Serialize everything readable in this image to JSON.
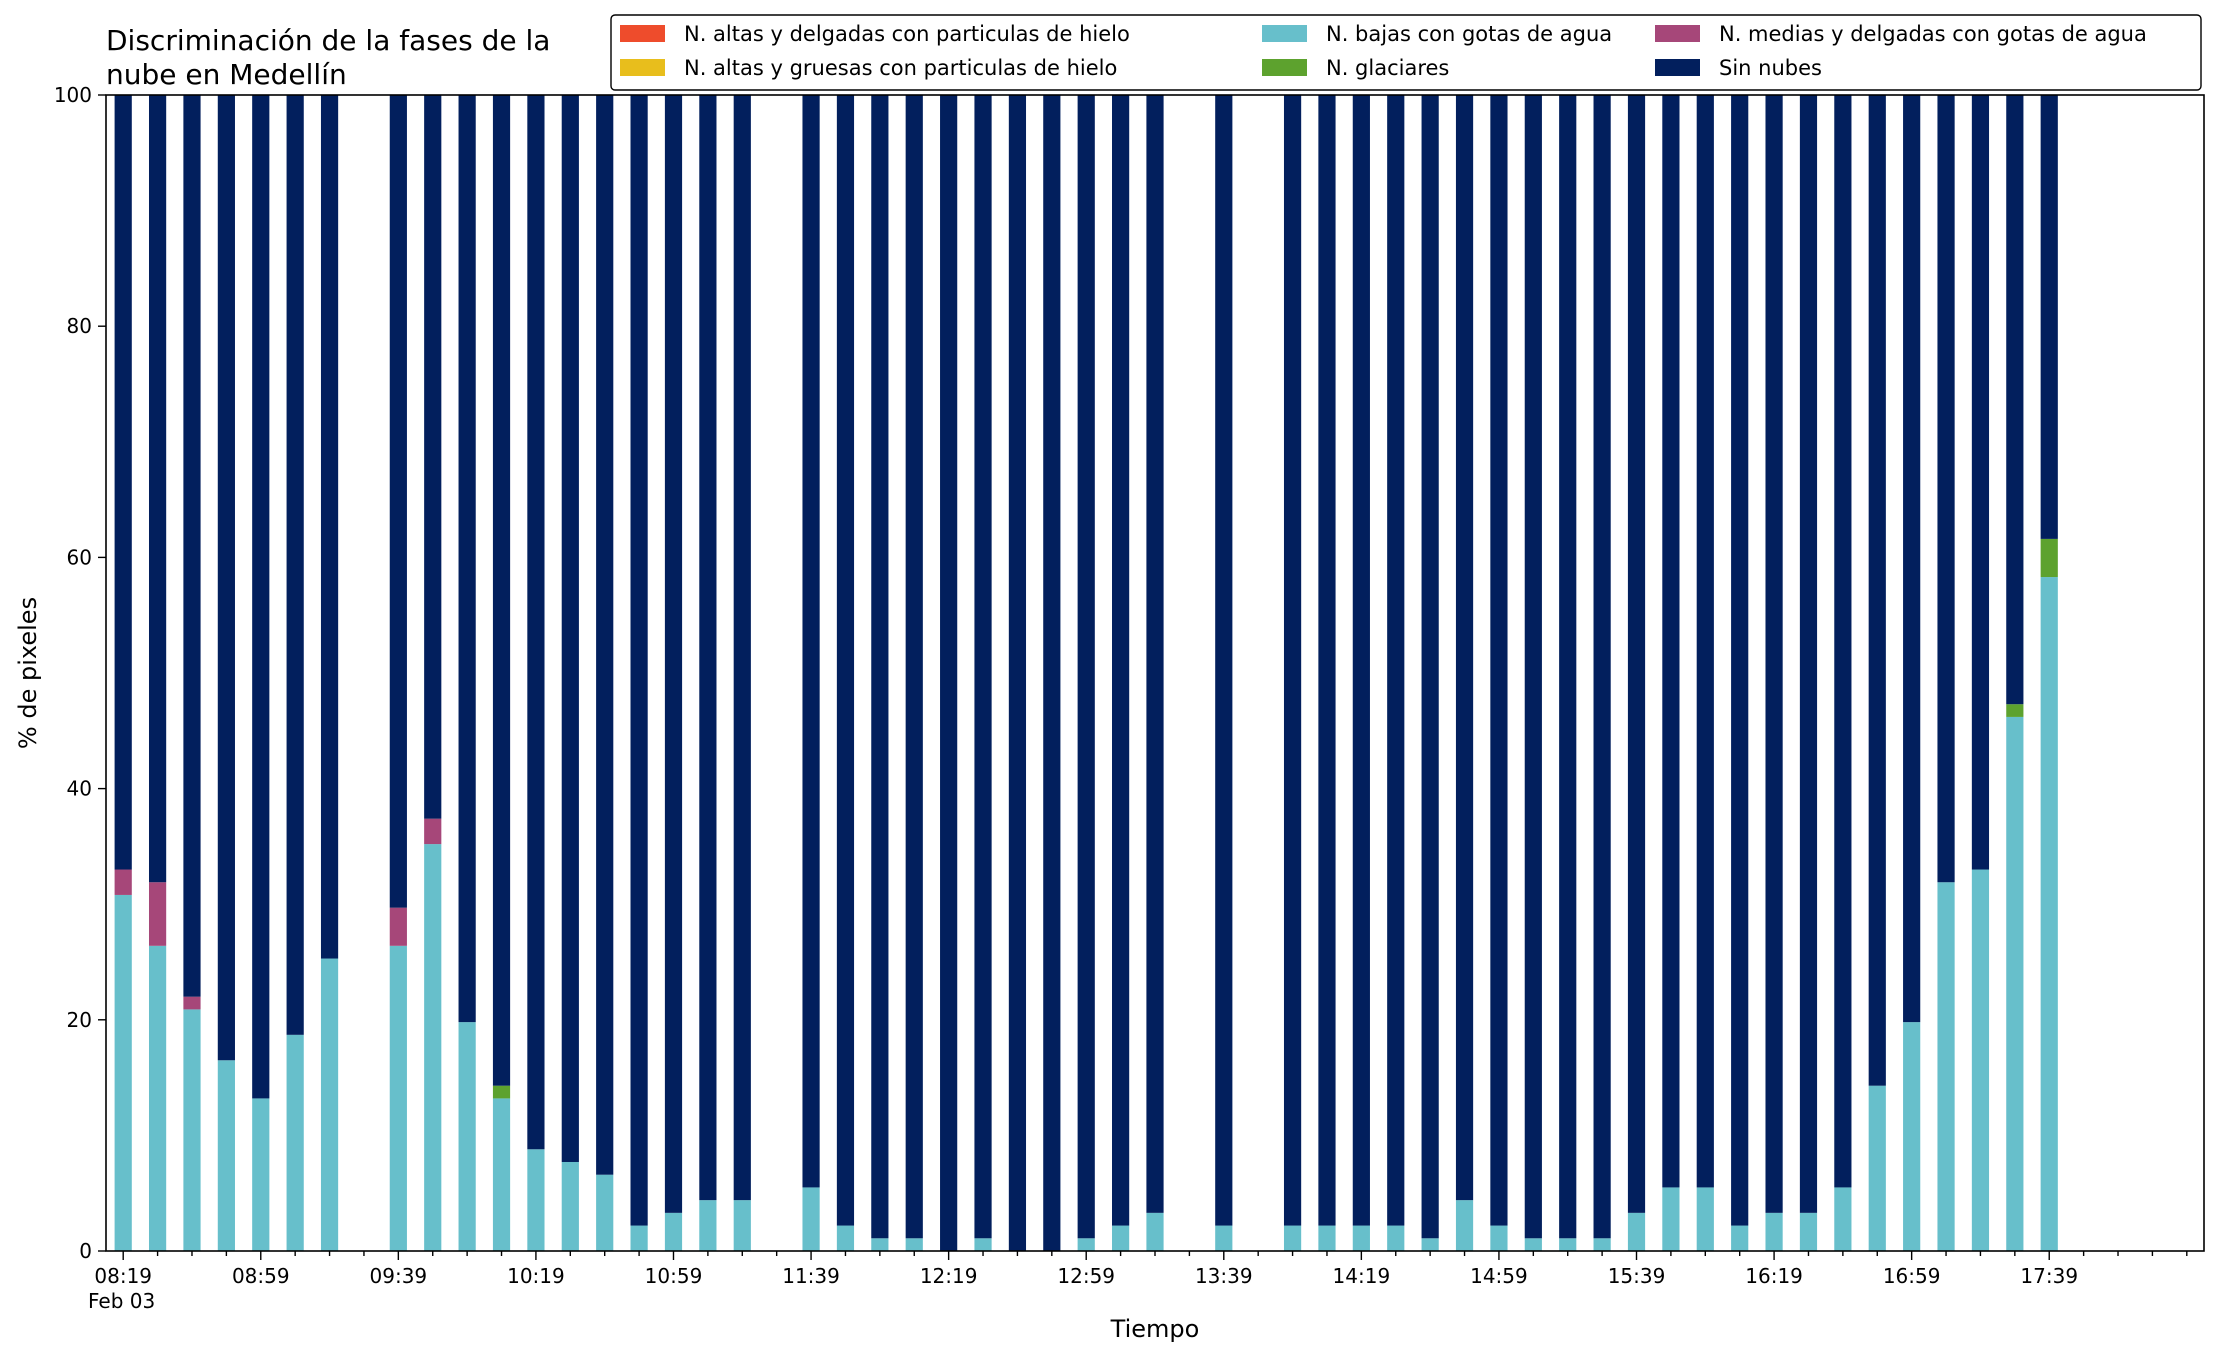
{
  "chart_data": {
    "type": "bar",
    "stacked": true,
    "title": "Discriminación de la fases de la nube en Medellín",
    "title_lines": [
      "Discriminación de la fases de la",
      "nube en Medellín"
    ],
    "xlabel": "Tiempo",
    "ylabel": "% de pixeles",
    "ylim": [
      0,
      100
    ],
    "yticks": [
      0,
      20,
      40,
      60,
      80,
      100
    ],
    "x_start": "08:19",
    "x_end": "18:19",
    "x_step_minutes": 10,
    "x_tick_labels": [
      "08:19",
      "08:59",
      "09:39",
      "10:19",
      "10:59",
      "11:39",
      "12:19",
      "12:59",
      "13:39",
      "14:19",
      "14:59",
      "15:39",
      "16:19",
      "16:59",
      "17:39"
    ],
    "x_date_label": "Feb 03",
    "legend_position": "top-right",
    "legend_columns": 3,
    "times": [
      "08:19",
      "08:29",
      "08:39",
      "08:49",
      "08:59",
      "09:09",
      "09:19",
      "09:29",
      "09:39",
      "09:49",
      "09:59",
      "10:09",
      "10:19",
      "10:29",
      "10:39",
      "10:49",
      "10:59",
      "11:09",
      "11:19",
      "11:29",
      "11:39",
      "11:49",
      "11:59",
      "12:09",
      "12:19",
      "12:29",
      "12:39",
      "12:49",
      "12:59",
      "13:09",
      "13:19",
      "13:29",
      "13:39",
      "13:49",
      "13:59",
      "14:09",
      "14:19",
      "14:29",
      "14:39",
      "14:49",
      "14:59",
      "15:09",
      "15:19",
      "15:29",
      "15:39",
      "15:49",
      "15:59",
      "16:09",
      "16:19",
      "16:29",
      "16:39",
      "16:49",
      "16:59",
      "17:09",
      "17:19",
      "17:29",
      "17:39"
    ],
    "series": [
      {
        "name": "N. altas y delgadas con particulas de hielo",
        "color": "#ee4c2c",
        "values": [
          0,
          0,
          0,
          0,
          0,
          0,
          0,
          0,
          0,
          0,
          0,
          0,
          0,
          0,
          0,
          0,
          0,
          0,
          0,
          0,
          0,
          0,
          0,
          0,
          0,
          0,
          0,
          0,
          0,
          0,
          0,
          0,
          0,
          0,
          0,
          0,
          0,
          0,
          0,
          0,
          0,
          0,
          0,
          0,
          0,
          0,
          0,
          0,
          0,
          0,
          0,
          0,
          0,
          0,
          0,
          0,
          0
        ]
      },
      {
        "name": "N. altas y gruesas con particulas de hielo",
        "color": "#e8be1c",
        "values": [
          0,
          0,
          0,
          0,
          0,
          0,
          0,
          0,
          0,
          0,
          0,
          0,
          0,
          0,
          0,
          0,
          0,
          0,
          0,
          0,
          0,
          0,
          0,
          0,
          0,
          0,
          0,
          0,
          0,
          0,
          0,
          0,
          0,
          0,
          0,
          0,
          0,
          0,
          0,
          0,
          0,
          0,
          0,
          0,
          0,
          0,
          0,
          0,
          0,
          0,
          0,
          0,
          0,
          0,
          0,
          0,
          0
        ]
      },
      {
        "name": "N. bajas con gotas de agua",
        "color": "#67bfcb",
        "values": [
          30.8,
          26.4,
          20.9,
          16.5,
          13.2,
          18.7,
          25.3,
          null,
          26.4,
          35.2,
          19.8,
          13.2,
          8.8,
          7.7,
          6.6,
          2.2,
          3.3,
          4.4,
          4.4,
          null,
          5.5,
          2.2,
          1.1,
          1.1,
          0,
          1.1,
          0,
          0,
          1.1,
          2.2,
          3.3,
          null,
          2.2,
          null,
          2.2,
          2.2,
          2.2,
          2.2,
          1.1,
          4.4,
          2.2,
          1.1,
          1.1,
          1.1,
          3.3,
          5.5,
          5.5,
          2.2,
          3.3,
          3.3,
          5.5,
          14.3,
          19.8,
          31.9,
          33.0,
          46.2,
          58.3
        ]
      },
      {
        "name": "N. glaciares",
        "color": "#5da22e",
        "values": [
          0,
          0,
          0,
          0,
          0,
          0,
          0,
          null,
          0,
          0,
          0,
          1.1,
          0,
          0,
          0,
          0,
          0,
          0,
          0,
          null,
          0,
          0,
          0,
          0,
          0,
          0,
          0,
          0,
          0,
          0,
          0,
          null,
          0,
          null,
          0,
          0,
          0,
          0,
          0,
          0,
          0,
          0,
          0,
          0,
          0,
          0,
          0,
          0,
          0,
          0,
          0,
          0,
          0,
          0,
          0,
          1.1,
          3.3
        ]
      },
      {
        "name": "N. medias y delgadas con gotas de agua",
        "color": "#a64779",
        "values": [
          2.2,
          5.5,
          1.1,
          0,
          0,
          0,
          0,
          null,
          3.3,
          2.2,
          0,
          0,
          0,
          0,
          0,
          0,
          0,
          0,
          0,
          null,
          0,
          0,
          0,
          0,
          0,
          0,
          0,
          0,
          0,
          0,
          0,
          null,
          0,
          null,
          0,
          0,
          0,
          0,
          0,
          0,
          0,
          0,
          0,
          0,
          0,
          0,
          0,
          0,
          0,
          0,
          0,
          0,
          0,
          0,
          0,
          0,
          0
        ]
      },
      {
        "name": "Sin nubes",
        "color": "#021f5d",
        "values": [
          67.0,
          68.1,
          78.0,
          83.5,
          86.8,
          81.3,
          74.7,
          null,
          70.3,
          62.6,
          80.2,
          85.7,
          91.2,
          92.3,
          93.4,
          97.8,
          96.7,
          95.6,
          95.6,
          null,
          94.5,
          97.8,
          98.9,
          98.9,
          100,
          98.9,
          100,
          100,
          98.9,
          97.8,
          96.7,
          null,
          97.8,
          null,
          97.8,
          97.8,
          97.8,
          97.8,
          98.9,
          95.6,
          97.8,
          98.9,
          98.9,
          98.9,
          96.7,
          94.5,
          94.5,
          97.8,
          96.7,
          96.7,
          94.5,
          85.7,
          80.2,
          68.1,
          67.0,
          52.7,
          38.4
        ]
      }
    ]
  }
}
